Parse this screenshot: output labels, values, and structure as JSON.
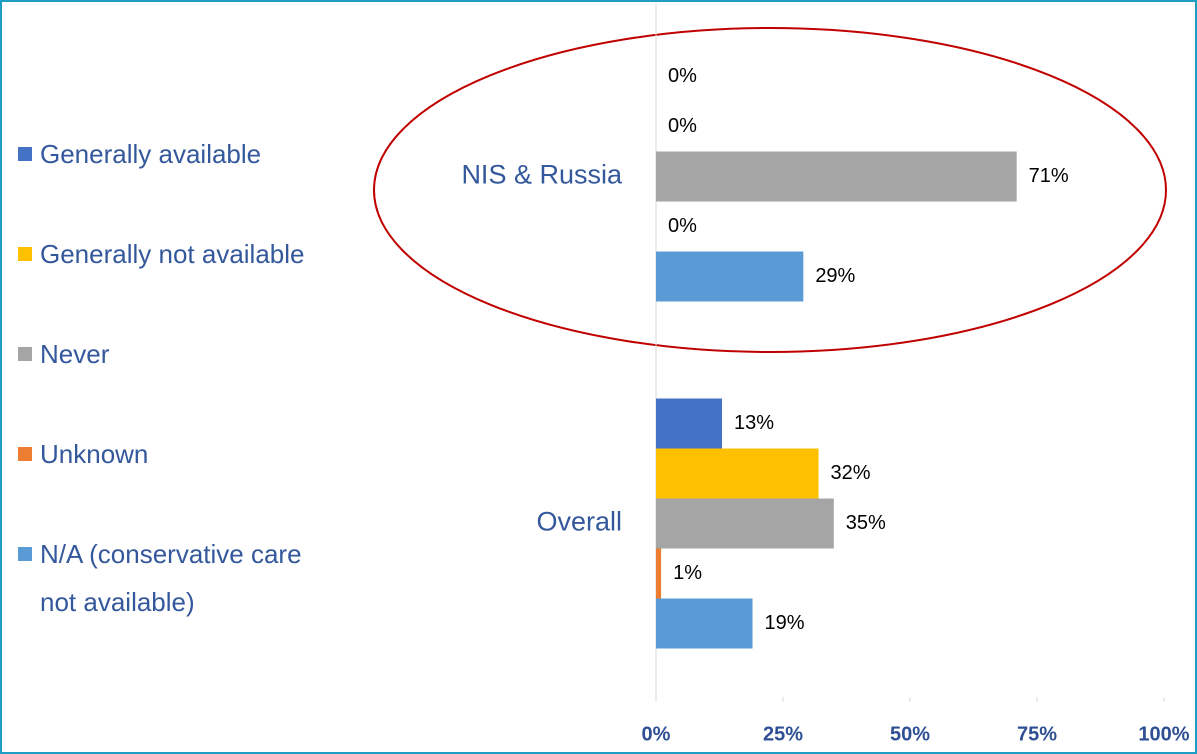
{
  "chart_data": {
    "type": "bar",
    "orientation": "horizontal",
    "categories": [
      "NIS & Russia",
      "Overall"
    ],
    "series": [
      {
        "name": "Generally available",
        "color": "#4472c4",
        "values": [
          0,
          13
        ],
        "value_labels": [
          "0%",
          "13%"
        ]
      },
      {
        "name": "Generally not available",
        "color": "#ffc000",
        "values": [
          0,
          32
        ],
        "value_labels": [
          "0%",
          "32%"
        ]
      },
      {
        "name": "Never",
        "color": "#a5a5a5",
        "values": [
          71,
          35
        ],
        "value_labels": [
          "71%",
          "35%"
        ]
      },
      {
        "name": "Unknown",
        "color": "#ed7d31",
        "values": [
          0,
          1
        ],
        "value_labels": [
          "0%",
          "1%"
        ]
      },
      {
        "name": "N/A (conservative care not available)",
        "color": "#5b9bd5",
        "values": [
          29,
          19
        ],
        "value_labels": [
          "29%",
          "19%"
        ]
      }
    ],
    "xlim": [
      0,
      100
    ],
    "xticks": [
      {
        "value": 0,
        "label": "0%"
      },
      {
        "value": 25,
        "label": "25%"
      },
      {
        "value": 50,
        "label": "50%"
      },
      {
        "value": 75,
        "label": "75%"
      },
      {
        "value": 100,
        "label": "100%"
      }
    ],
    "legend": "left"
  }
}
